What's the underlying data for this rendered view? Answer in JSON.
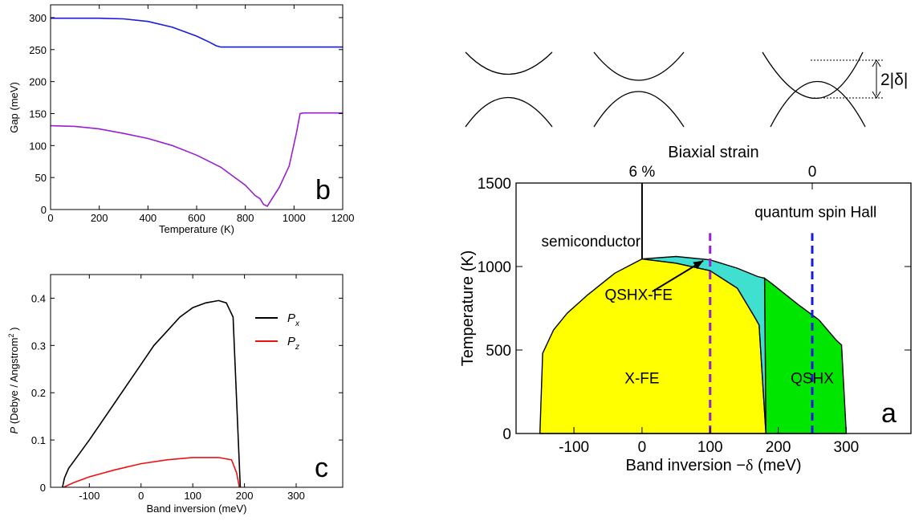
{
  "chart_data": [
    {
      "type": "line",
      "panel_label": "b",
      "xlabel": "Temperature  (K)",
      "ylabel": "Gap  (meV)",
      "xlim": [
        0,
        1200
      ],
      "ylim": [
        0,
        320
      ],
      "xticks": [
        "0",
        "200",
        "400",
        "600",
        "800",
        "1000",
        "1200"
      ],
      "yticks": [
        "0",
        "50",
        "100",
        "150",
        "200",
        "250",
        "300"
      ],
      "series": [
        {
          "color": "#1a1adc",
          "points": [
            [
              0,
              299
            ],
            [
              200,
              299
            ],
            [
              300,
              298
            ],
            [
              400,
              294
            ],
            [
              500,
              285
            ],
            [
              600,
              271
            ],
            [
              650,
              262
            ],
            [
              680,
              256
            ],
            [
              700,
              254
            ],
            [
              800,
              254
            ],
            [
              1000,
              254
            ],
            [
              1200,
              254
            ]
          ]
        },
        {
          "color": "#9a1fd0",
          "points": [
            [
              0,
              131
            ],
            [
              100,
              130
            ],
            [
              200,
              126
            ],
            [
              300,
              119
            ],
            [
              400,
              111
            ],
            [
              500,
              100
            ],
            [
              600,
              85
            ],
            [
              700,
              66
            ],
            [
              750,
              52
            ],
            [
              800,
              38
            ],
            [
              840,
              22
            ],
            [
              860,
              17
            ],
            [
              875,
              8
            ],
            [
              890,
              5
            ],
            [
              905,
              14
            ],
            [
              940,
              35
            ],
            [
              980,
              68
            ],
            [
              1010,
              120
            ],
            [
              1025,
              150
            ],
            [
              1040,
              151
            ],
            [
              1200,
              151
            ]
          ]
        }
      ]
    },
    {
      "type": "line",
      "panel_label": "c",
      "xlabel": "Band inversion  (meV)",
      "ylabel_italic": "P",
      "ylabel_rest": " (Debye / Angstrom",
      "ylabel_sup": "2",
      "ylabel_end": " )",
      "xlim": [
        -175,
        390
      ],
      "ylim": [
        0,
        0.45
      ],
      "xticks": [
        -100,
        0,
        100,
        200,
        300
      ],
      "xtick_labels": [
        "-100",
        "0",
        "100",
        "200",
        "300"
      ],
      "yticks": [
        0,
        0.1,
        0.2,
        0.3,
        0.4
      ],
      "ytick_labels": [
        "0",
        "0.1",
        "0.2",
        "0.3",
        "0.4"
      ],
      "legend_position": "top-right",
      "series": [
        {
          "label_main": "P",
          "label_sub": "x",
          "color": "#000000",
          "points": [
            [
              -152,
              0
            ],
            [
              -148,
              0.02
            ],
            [
              -140,
              0.04
            ],
            [
              -120,
              0.07
            ],
            [
              -100,
              0.1
            ],
            [
              -75,
              0.14
            ],
            [
              -50,
              0.18
            ],
            [
              -25,
              0.22
            ],
            [
              0,
              0.26
            ],
            [
              25,
              0.3
            ],
            [
              50,
              0.33
            ],
            [
              75,
              0.36
            ],
            [
              100,
              0.38
            ],
            [
              125,
              0.39
            ],
            [
              150,
              0.395
            ],
            [
              165,
              0.39
            ],
            [
              178,
              0.36
            ],
            [
              188,
              0.1
            ],
            [
              192,
              0
            ]
          ]
        },
        {
          "label_main": "P",
          "label_sub": "z",
          "color": "#ee1111",
          "points": [
            [
              -150,
              0
            ],
            [
              -130,
              0.01
            ],
            [
              -100,
              0.022
            ],
            [
              -50,
              0.037
            ],
            [
              0,
              0.05
            ],
            [
              50,
              0.058
            ],
            [
              100,
              0.063
            ],
            [
              150,
              0.063
            ],
            [
              175,
              0.058
            ],
            [
              185,
              0.03
            ],
            [
              190,
              0
            ]
          ]
        }
      ]
    },
    {
      "type": "area",
      "panel_label": "a",
      "xlabel_pre": "Band inversion  −",
      "xlabel_delta": "δ",
      "xlabel_post": "  (meV)",
      "ylabel": "Temperature  (K)",
      "top_axis_label": "Biaxial strain",
      "top_ticks": [
        {
          "x": 0,
          "label": "6 %"
        },
        {
          "x": 250,
          "label": "0"
        }
      ],
      "xlim": [
        -185,
        395
      ],
      "ylim": [
        0,
        1500
      ],
      "xticks": [
        -100,
        0,
        100,
        200,
        300
      ],
      "xtick_labels": [
        "-100",
        "0",
        "100",
        "200",
        "300"
      ],
      "yticks": [
        0,
        500,
        1000,
        1500
      ],
      "ytick_labels": [
        "0",
        "500",
        "1000",
        "1500"
      ],
      "regions": [
        {
          "name": "X-FE",
          "color": "#ffff00",
          "boundary": [
            [
              -150,
              0
            ],
            [
              -146,
              480
            ],
            [
              -130,
              620
            ],
            [
              -110,
              720
            ],
            [
              -80,
              830
            ],
            [
              -40,
              960
            ],
            [
              0,
              1045
            ],
            [
              50,
              1020
            ],
            [
              100,
              975
            ],
            [
              140,
              870
            ],
            [
              165,
              700
            ],
            [
              172,
              650
            ],
            [
              182,
              0
            ]
          ]
        },
        {
          "name": "QSHX",
          "color": "#00e600",
          "boundary": [
            [
              182,
              0
            ],
            [
              180,
              930
            ],
            [
              190,
              900
            ],
            [
              230,
              770
            ],
            [
              260,
              680
            ],
            [
              285,
              560
            ],
            [
              293,
              530
            ],
            [
              300,
              0
            ]
          ]
        },
        {
          "name": "QSHX-FE",
          "color": "#40e0d0",
          "boundary": [
            [
              0,
              1045
            ],
            [
              50,
              1060
            ],
            [
              100,
              1040
            ],
            [
              140,
              990
            ],
            [
              170,
              940
            ],
            [
              180,
              930
            ],
            [
              182,
              0
            ],
            [
              172,
              650
            ],
            [
              165,
              700
            ],
            [
              140,
              870
            ],
            [
              100,
              975
            ],
            [
              50,
              1020
            ]
          ]
        }
      ],
      "phase_labels": [
        {
          "text": "semiconductor",
          "x": -75,
          "y": 1120
        },
        {
          "text": "quantum spin Hall",
          "x": 255,
          "y": 1295
        },
        {
          "text": "QSHX-FE",
          "x": -5,
          "y": 800
        },
        {
          "text": "X-FE",
          "x": 0,
          "y": 300
        },
        {
          "text": "QSHX",
          "x": 250,
          "y": 300
        }
      ],
      "arrow": {
        "from": [
          15,
          850
        ],
        "to": [
          90,
          1035
        ]
      },
      "vertical_line": {
        "x": 0,
        "y_from": 1045,
        "y_to": 1500
      },
      "dashed_lines": [
        {
          "x": 100,
          "color": "#9a1fd0",
          "y_from": 0,
          "y_to": 1200
        },
        {
          "x": 250,
          "color": "#1a1adc",
          "y_from": 0,
          "y_to": 1200
        }
      ],
      "delta_label": "2|δ|"
    }
  ]
}
